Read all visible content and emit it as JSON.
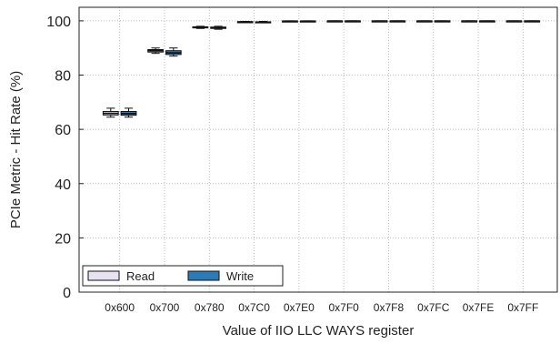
{
  "chart_data": {
    "type": "box",
    "title": "",
    "xlabel": "Value of IIO LLC WAYS register",
    "ylabel": "PCIe Metric - Hit Rate (%)",
    "ylim": [
      0,
      105
    ],
    "yticks": [
      0,
      20,
      40,
      60,
      80,
      100
    ],
    "grid": true,
    "legend_position": "bottom-left",
    "categories": [
      "0x600",
      "0x700",
      "0x780",
      "0x7C0",
      "0x7E0",
      "0x7F0",
      "0x7F8",
      "0x7FC",
      "0x7FE",
      "0x7FF"
    ],
    "series": [
      {
        "name": "Read",
        "color": "#e8e3f3",
        "boxes": [
          {
            "whislo": 64.5,
            "q1": 65.3,
            "med": 65.9,
            "q3": 66.6,
            "whishi": 67.8
          },
          {
            "whislo": 88.0,
            "q1": 88.5,
            "med": 89.0,
            "q3": 89.4,
            "whishi": 90.0
          },
          {
            "whislo": 97.2,
            "q1": 97.4,
            "med": 97.6,
            "q3": 97.8,
            "whishi": 98.0
          },
          {
            "whislo": 99.4,
            "q1": 99.5,
            "med": 99.6,
            "q3": 99.7,
            "whishi": 99.8
          },
          {
            "whislo": 99.85,
            "q1": 99.9,
            "med": 99.92,
            "q3": 99.95,
            "whishi": 100
          },
          {
            "whislo": 99.9,
            "q1": 99.93,
            "med": 99.95,
            "q3": 99.97,
            "whishi": 100
          },
          {
            "whislo": 99.9,
            "q1": 99.93,
            "med": 99.95,
            "q3": 99.97,
            "whishi": 100
          },
          {
            "whislo": 99.9,
            "q1": 99.93,
            "med": 99.95,
            "q3": 99.97,
            "whishi": 100
          },
          {
            "whislo": 99.9,
            "q1": 99.93,
            "med": 99.95,
            "q3": 99.97,
            "whishi": 100
          },
          {
            "whislo": 99.9,
            "q1": 99.93,
            "med": 99.95,
            "q3": 99.97,
            "whishi": 100
          }
        ]
      },
      {
        "name": "Write",
        "color": "#2b7bb9",
        "boxes": [
          {
            "whislo": 64.5,
            "q1": 65.2,
            "med": 65.8,
            "q3": 66.6,
            "whishi": 67.8
          },
          {
            "whislo": 87.0,
            "q1": 87.6,
            "med": 88.2,
            "q3": 89.0,
            "whishi": 90.0
          },
          {
            "whislo": 96.9,
            "q1": 97.2,
            "med": 97.4,
            "q3": 97.7,
            "whishi": 98.0
          },
          {
            "whislo": 99.3,
            "q1": 99.45,
            "med": 99.55,
            "q3": 99.65,
            "whishi": 99.8
          },
          {
            "whislo": 99.85,
            "q1": 99.9,
            "med": 99.92,
            "q3": 99.95,
            "whishi": 100
          },
          {
            "whislo": 99.9,
            "q1": 99.93,
            "med": 99.95,
            "q3": 99.97,
            "whishi": 100
          },
          {
            "whislo": 99.9,
            "q1": 99.93,
            "med": 99.95,
            "q3": 99.97,
            "whishi": 100
          },
          {
            "whislo": 99.9,
            "q1": 99.93,
            "med": 99.95,
            "q3": 99.97,
            "whishi": 100
          },
          {
            "whislo": 99.9,
            "q1": 99.93,
            "med": 99.95,
            "q3": 99.97,
            "whishi": 100
          },
          {
            "whislo": 99.9,
            "q1": 99.93,
            "med": 99.95,
            "q3": 99.97,
            "whishi": 100
          }
        ]
      }
    ],
    "legend": [
      {
        "label": "Read",
        "color": "#e8e3f3"
      },
      {
        "label": "Write",
        "color": "#2b7bb9"
      }
    ]
  }
}
